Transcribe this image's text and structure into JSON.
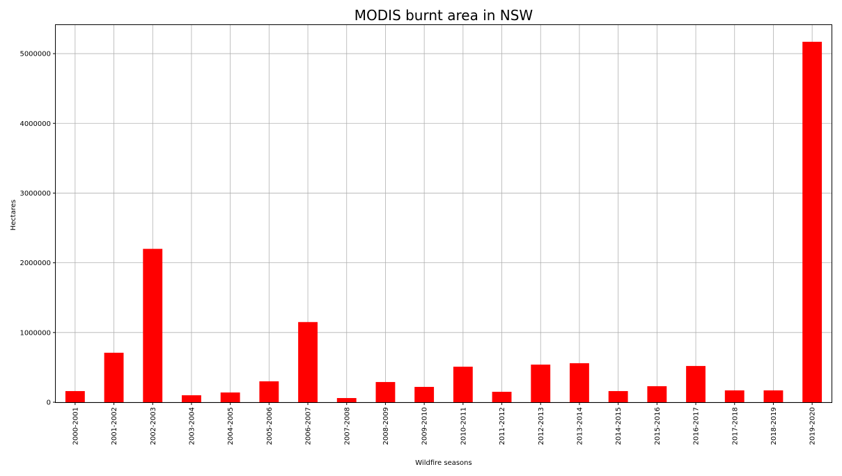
{
  "chart_data": {
    "type": "bar",
    "title": "MODIS burnt area in NSW",
    "xlabel": "Wildfire seasons",
    "ylabel": "Hectares",
    "categories": [
      "2000-2001",
      "2001-2002",
      "2002-2003",
      "2003-2004",
      "2004-2005",
      "2005-2006",
      "2006-2007",
      "2007-2008",
      "2008-2009",
      "2009-2010",
      "2010-2011",
      "2011-2012",
      "2012-2013",
      "2013-2014",
      "2014-2015",
      "2015-2016",
      "2016-2017",
      "2017-2018",
      "2018-2019",
      "2019-2020"
    ],
    "values": [
      160000,
      710000,
      2200000,
      100000,
      140000,
      300000,
      1150000,
      60000,
      290000,
      220000,
      510000,
      150000,
      540000,
      560000,
      160000,
      230000,
      520000,
      170000,
      170000,
      5170000
    ],
    "ylim": [
      0,
      5420000
    ],
    "yticks": [
      0,
      1000000,
      2000000,
      3000000,
      4000000,
      5000000
    ],
    "ytick_labels": [
      "0",
      "1000000",
      "2000000",
      "3000000",
      "4000000",
      "5000000"
    ],
    "bar_color": "#ff0000",
    "grid": true,
    "legend": "none"
  }
}
